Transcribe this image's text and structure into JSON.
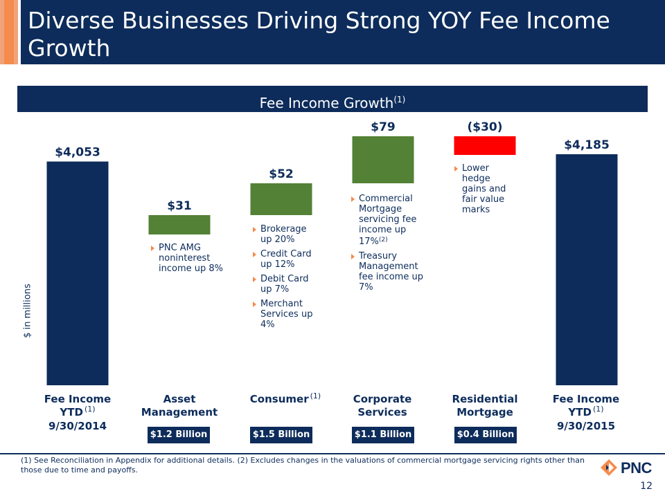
{
  "header": {
    "title": "Diverse Businesses Driving Strong YOY Fee Income Growth"
  },
  "band": {
    "title": "Fee Income Growth",
    "note": "(1)"
  },
  "colors": {
    "navy": "#0d2c5b",
    "green": "#538135",
    "red": "#ff0000",
    "orange": "#f58b4c"
  },
  "chart_data": {
    "type": "bar",
    "subtype": "waterfall",
    "ylabel": "$ in millions",
    "categories": [
      "Fee Income YTD 9/30/2014",
      "Asset Management",
      "Consumer",
      "Corporate Services",
      "Residential Mortgage",
      "Fee Income YTD 9/30/2015"
    ],
    "values": [
      4053,
      31,
      52,
      79,
      -30,
      4185
    ],
    "labels": [
      "$4,053",
      "$31",
      "$52",
      "$79",
      "($30)",
      "$4,185"
    ],
    "kinds": [
      "total",
      "increase",
      "increase",
      "increase",
      "decrease",
      "total"
    ]
  },
  "categories": [
    {
      "line1": "Fee Income YTD",
      "line2": "9/30/2014",
      "note": "(1)"
    },
    {
      "line1": "Asset",
      "line2": "Management",
      "note": ""
    },
    {
      "line1": "Consumer",
      "line2": "",
      "note": "(1)"
    },
    {
      "line1": "Corporate",
      "line2": "Services",
      "note": ""
    },
    {
      "line1": "Residential",
      "line2": "Mortgage",
      "note": ""
    },
    {
      "line1": "Fee Income YTD",
      "line2": "9/30/2015",
      "note": "(1)"
    }
  ],
  "pills": [
    "$1.2 Billion",
    "$1.5 Billion",
    "$1.1 Billion",
    "$0.4 Billion"
  ],
  "bullets": {
    "asset": [
      "PNC AMG noninterest income up 8%"
    ],
    "consumer": [
      "Brokerage up 20%",
      "Credit Card up 12%",
      "Debit Card up 7%",
      "Merchant Services up 4%"
    ],
    "corporate": [
      {
        "text": "Commercial Mortgage servicing fee income up 17%",
        "sup": "(2)"
      },
      {
        "text": "Treasury Management fee income up 7%",
        "sup": ""
      }
    ],
    "mortgage": [
      "Lower hedge gains and fair value marks"
    ]
  },
  "footer": {
    "text": "(1) See Reconciliation in Appendix for additional details. (2) Excludes changes in the valuations of commercial mortgage servicing rights other than those due to time and payoffs.",
    "logo": "PNC",
    "page": "12"
  }
}
